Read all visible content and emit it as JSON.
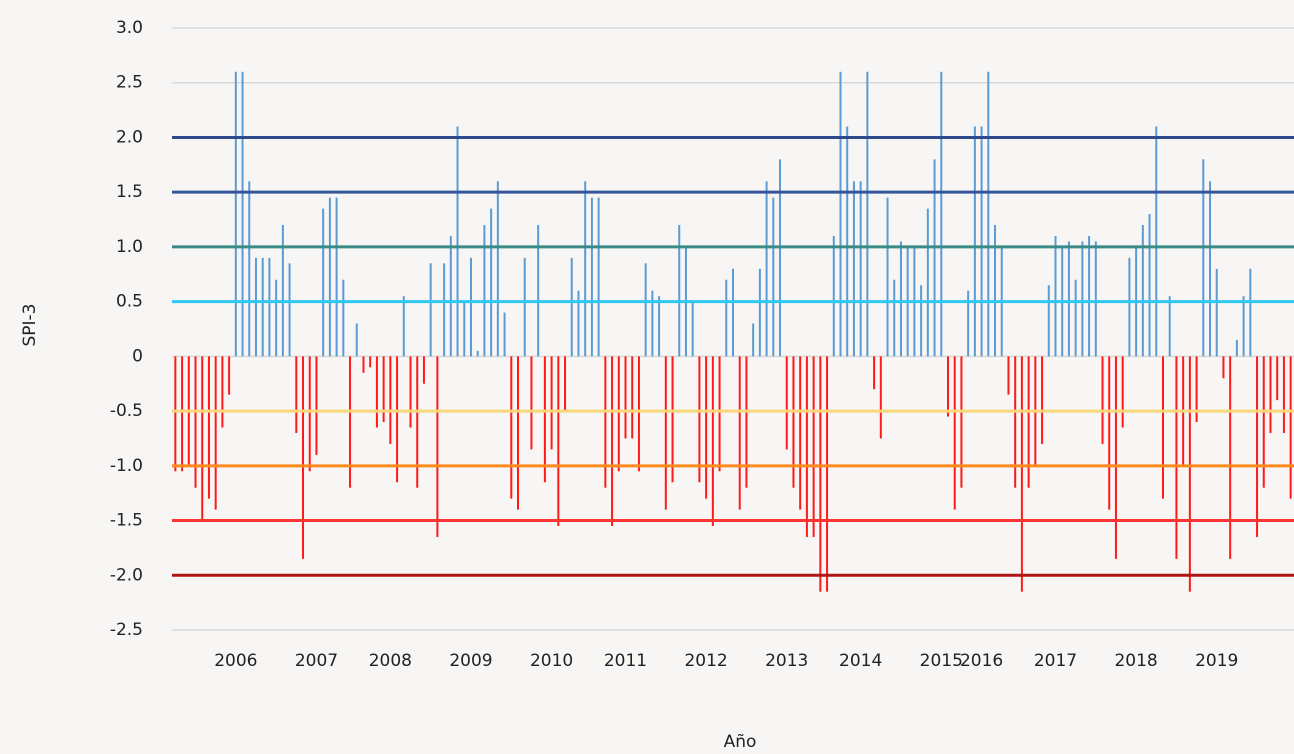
{
  "chart_data": {
    "type": "bar",
    "y_label": "SPI-3",
    "x_label": "Año",
    "positive_color": "#5b9bd5",
    "negative_color": "#ff1a1a",
    "grid": true,
    "ylim": [
      -2.5,
      3
    ],
    "yticks": [
      {
        "value": 3,
        "label": "3.0"
      },
      2.5,
      {
        "value": 2,
        "label": "2.0"
      },
      1.5,
      {
        "value": 1,
        "label": "1.0"
      },
      0.5,
      0,
      -0.5,
      {
        "value": -1,
        "label": "-1.0"
      },
      -1.5,
      {
        "value": -2,
        "label": "-2.0"
      },
      -2.5
    ],
    "reference_lines": [
      {
        "value": 2,
        "color": "#2e4a8c"
      },
      {
        "value": 1.5,
        "color": "#36569c"
      },
      {
        "value": 1,
        "color": "#3a8a88"
      },
      {
        "value": 0.5,
        "color": "#2ec8f5"
      },
      {
        "value": -0.5,
        "color": "#f9d67a"
      },
      {
        "value": -1,
        "color": "#ff8a1e"
      },
      {
        "value": -1.5,
        "color": "#ff3333"
      },
      {
        "value": -2,
        "color": "#b01515"
      }
    ],
    "categories": [
      null,
      null,
      null,
      null,
      null,
      null,
      null,
      null,
      null,
      "2006",
      null,
      null,
      null,
      null,
      null,
      null,
      null,
      null,
      null,
      null,
      null,
      "2007",
      null,
      null,
      null,
      null,
      null,
      null,
      null,
      null,
      null,
      null,
      "2008",
      null,
      null,
      null,
      null,
      null,
      null,
      null,
      null,
      null,
      null,
      null,
      "2009",
      null,
      null,
      null,
      null,
      null,
      null,
      null,
      null,
      null,
      null,
      null,
      "2010",
      null,
      null,
      null,
      null,
      null,
      null,
      null,
      null,
      null,
      null,
      "2011",
      null,
      null,
      null,
      null,
      null,
      null,
      null,
      null,
      null,
      null,
      null,
      "2012",
      null,
      null,
      null,
      null,
      null,
      null,
      null,
      null,
      null,
      null,
      null,
      "2013",
      null,
      null,
      null,
      null,
      null,
      null,
      null,
      null,
      null,
      null,
      "2014",
      null,
      null,
      null,
      null,
      null,
      null,
      null,
      null,
      null,
      null,
      null,
      "2015",
      null,
      null,
      null,
      null,
      null,
      "2016",
      null,
      null,
      null,
      null,
      null,
      null,
      null,
      null,
      null,
      null,
      "2017",
      null,
      null,
      null,
      null,
      null,
      null,
      null,
      null,
      null,
      null,
      null,
      "2018",
      null,
      null,
      null,
      null,
      null,
      null,
      null,
      null,
      null,
      null,
      null,
      "2019",
      null,
      null,
      null,
      null,
      null,
      null,
      null,
      null,
      null,
      null,
      null
    ],
    "values": [
      -1.05,
      -1.05,
      -1.0,
      -1.2,
      -1.5,
      -1.3,
      -1.4,
      -0.65,
      -0.35,
      2.6,
      2.6,
      1.6,
      0.9,
      0.9,
      0.9,
      0.7,
      1.2,
      0.85,
      -0.7,
      -1.85,
      -1.05,
      -0.9,
      1.35,
      1.45,
      1.45,
      0.7,
      -1.2,
      0.3,
      -0.15,
      -0.1,
      -0.65,
      -0.6,
      -0.8,
      -1.15,
      0.55,
      -0.65,
      -1.2,
      -0.25,
      0.85,
      -1.65,
      0.85,
      1.1,
      2.1,
      0.5,
      0.9,
      0.05,
      1.2,
      1.35,
      1.6,
      0.4,
      -1.3,
      -1.4,
      0.9,
      -0.85,
      1.2,
      -1.15,
      -0.85,
      -1.55,
      -0.5,
      0.9,
      0.6,
      1.6,
      1.45,
      1.45,
      -1.2,
      -1.55,
      -1.05,
      -0.75,
      -0.75,
      -1.05,
      0.85,
      0.6,
      0.55,
      -1.4,
      -1.15,
      1.2,
      1.0,
      0.5,
      -1.15,
      -1.3,
      -1.55,
      -1.05,
      0.7,
      0.8,
      -1.4,
      -1.2,
      0.3,
      0.8,
      1.6,
      1.45,
      1.8,
      -0.85,
      -1.2,
      -1.4,
      -1.65,
      -1.65,
      -2.15,
      -2.15,
      1.1,
      2.6,
      2.1,
      1.6,
      1.6,
      2.6,
      -0.3,
      -0.75,
      1.45,
      0.7,
      1.05,
      1.0,
      1.0,
      0.65,
      1.35,
      1.8,
      2.6,
      -0.55,
      -1.4,
      -1.2,
      0.6,
      2.1,
      2.1,
      2.6,
      1.2,
      1.0,
      -0.35,
      -1.2,
      -2.15,
      -1.2,
      -1.0,
      -0.8,
      0.65,
      1.1,
      1.0,
      1.05,
      0.7,
      1.05,
      1.1,
      1.05,
      -0.8,
      -1.4,
      -1.85,
      -0.65,
      0.9,
      1.0,
      1.2,
      1.3,
      2.1,
      -1.3,
      0.55,
      -1.85,
      -1.0,
      -2.15,
      -0.6,
      1.8,
      1.6,
      0.8,
      -0.2,
      -1.85,
      0.15,
      0.55,
      0.8,
      -1.65,
      -1.2,
      -0.7,
      -0.4,
      -0.7,
      -1.3
    ]
  }
}
